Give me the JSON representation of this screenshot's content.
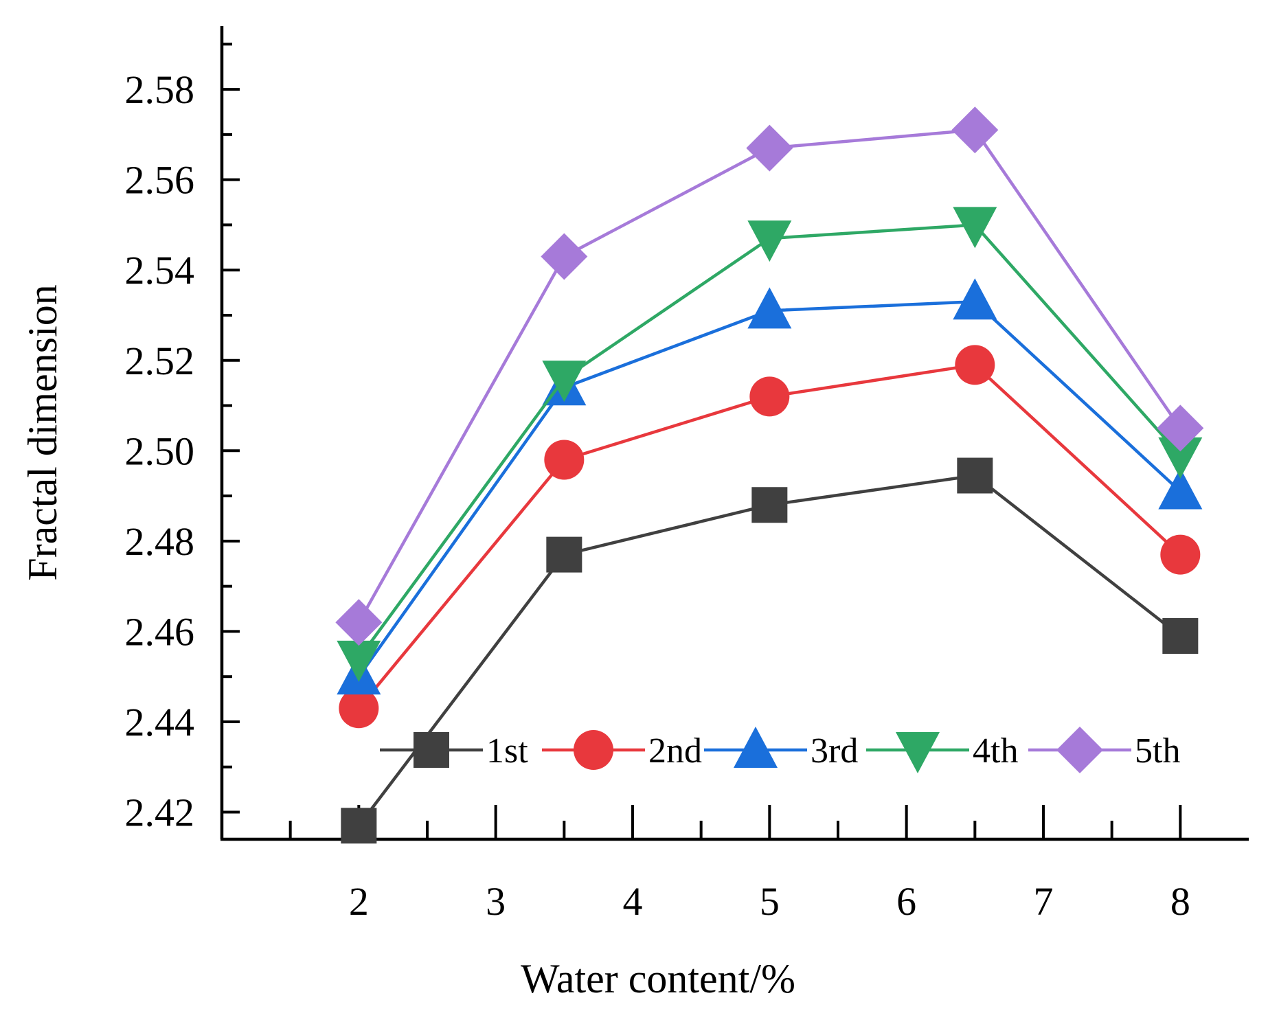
{
  "chart_data": {
    "type": "line",
    "xlabel": "Water content/%",
    "ylabel": "Fractal dimension",
    "xlim": [
      1.0,
      8.5
    ],
    "ylim": [
      2.414,
      2.594
    ],
    "x_ticks": [
      "2",
      "3",
      "4",
      "5",
      "6",
      "7",
      "8"
    ],
    "y_ticks": [
      "2.42",
      "2.44",
      "2.46",
      "2.48",
      "2.50",
      "2.52",
      "2.54",
      "2.56",
      "2.58"
    ],
    "x": [
      2,
      3.5,
      5,
      6.5,
      8
    ],
    "grid": false,
    "legend_position": "bottom-center, inside plot",
    "series": [
      {
        "name": "1st",
        "color": "#404040",
        "marker": "square",
        "values": [
          2.417,
          2.477,
          2.488,
          2.4945,
          2.459
        ]
      },
      {
        "name": "2nd",
        "color": "#e8383d",
        "marker": "circle",
        "values": [
          2.443,
          2.498,
          2.512,
          2.519,
          2.477
        ]
      },
      {
        "name": "3rd",
        "color": "#1a6fdb",
        "marker": "triangle-up",
        "values": [
          2.45,
          2.514,
          2.531,
          2.533,
          2.491
        ]
      },
      {
        "name": "4th",
        "color": "#2ea865",
        "marker": "triangle-down",
        "values": [
          2.454,
          2.516,
          2.547,
          2.55,
          2.499
        ]
      },
      {
        "name": "5th",
        "color": "#a67ad9",
        "marker": "diamond",
        "values": [
          2.462,
          2.543,
          2.567,
          2.571,
          2.505
        ]
      }
    ]
  }
}
